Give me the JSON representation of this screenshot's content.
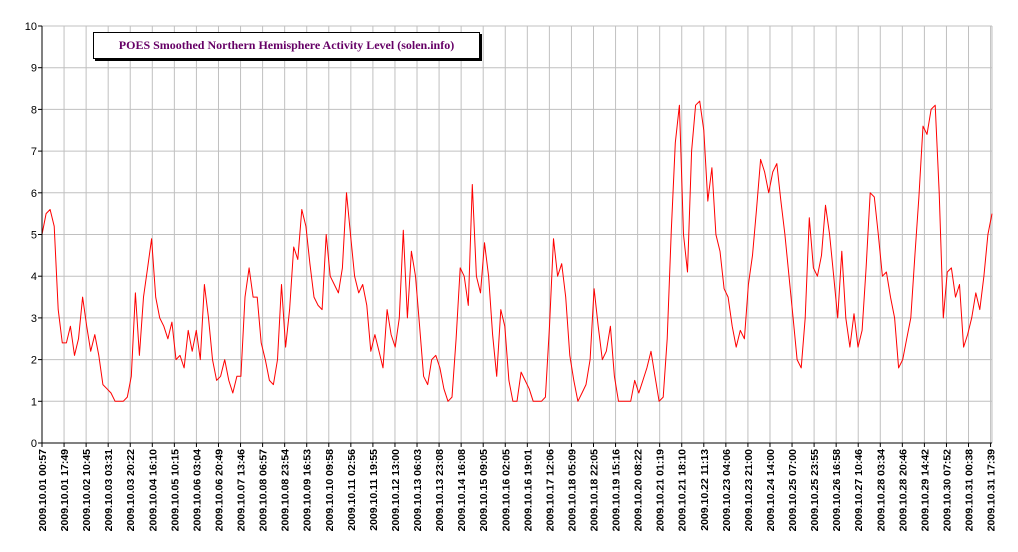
{
  "chart_data": {
    "type": "line",
    "title": "POES Smoothed Northern Hemisphere Activity Level  (solen.info)",
    "xlabel": "",
    "ylabel": "",
    "ylim": [
      0,
      10
    ],
    "y_ticks": [
      0,
      1,
      2,
      3,
      4,
      5,
      6,
      7,
      8,
      9,
      10
    ],
    "grid": true,
    "legend_position": "top-left",
    "colors": {
      "series": "#ff0000",
      "grid": "#c0c0c0",
      "title_text": "#660066",
      "axis": "#000000"
    },
    "x_tick_labels": [
      "2009.10.01 00:57",
      "2009.10.01 17:49",
      "2009.10.02 10:45",
      "2009.10.03 03:31",
      "2009.10.03 20:22",
      "2009.10.04 16:10",
      "2009.10.05 10:15",
      "2009.10.06 03:04",
      "2009.10.06 20:49",
      "2009.10.07 13:46",
      "2009.10.08 06:57",
      "2009.10.08 23:54",
      "2009.10.09 16:53",
      "2009.10.10 09:58",
      "2009.10.11 02:56",
      "2009.10.11 19:55",
      "2009.10.12 13:00",
      "2009.10.13 06:03",
      "2009.10.13 23:08",
      "2009.10.14 16:08",
      "2009.10.15 09:05",
      "2009.10.16 02:05",
      "2009.10.16 19:01",
      "2009.10.17 12:06",
      "2009.10.18 05:09",
      "2009.10.18 22:05",
      "2009.10.19 15:16",
      "2009.10.20 08:22",
      "2009.10.21 01:19",
      "2009.10.21 18:10",
      "2009.10.22 11:13",
      "2009.10.23 04:06",
      "2009.10.23 21:00",
      "2009.10.24 14:00",
      "2009.10.25 07:00",
      "2009.10.25 23:55",
      "2009.10.26 16:58",
      "2009.10.27 10:46",
      "2009.10.28 03:34",
      "2009.10.28 20:46",
      "2009.10.29 14:42",
      "2009.10.30 07:52",
      "2009.10.31 00:38",
      "2009.10.31 17:39"
    ],
    "series": [
      {
        "name": "",
        "x_start": "2009.10.01 00:57",
        "x_end": "2009.10.31 17:39",
        "values": [
          5.0,
          5.5,
          5.6,
          5.2,
          3.2,
          2.4,
          2.4,
          2.8,
          2.1,
          2.5,
          3.5,
          2.8,
          2.2,
          2.6,
          2.1,
          1.4,
          1.3,
          1.2,
          1.0,
          1.0,
          1.0,
          1.1,
          1.6,
          3.6,
          2.1,
          3.5,
          4.2,
          4.9,
          3.5,
          3.0,
          2.8,
          2.5,
          2.9,
          2.0,
          2.1,
          1.8,
          2.7,
          2.2,
          2.7,
          2.0,
          3.8,
          3.0,
          2.0,
          1.5,
          1.6,
          2.0,
          1.5,
          1.2,
          1.6,
          1.6,
          3.5,
          4.2,
          3.5,
          3.5,
          2.4,
          2.0,
          1.5,
          1.4,
          2.0,
          3.8,
          2.3,
          3.2,
          4.7,
          4.4,
          5.6,
          5.2,
          4.3,
          3.5,
          3.3,
          3.2,
          5.0,
          4.0,
          3.8,
          3.6,
          4.2,
          6.0,
          5.0,
          4.0,
          3.6,
          3.8,
          3.3,
          2.2,
          2.6,
          2.2,
          1.8,
          3.2,
          2.6,
          2.3,
          3.0,
          5.1,
          3.0,
          4.6,
          4.0,
          2.8,
          1.6,
          1.4,
          2.0,
          2.1,
          1.8,
          1.3,
          1.0,
          1.1,
          2.5,
          4.2,
          4.0,
          3.3,
          6.2,
          4.0,
          3.6,
          4.8,
          4.0,
          2.6,
          1.6,
          3.2,
          2.8,
          1.5,
          1.0,
          1.0,
          1.7,
          1.5,
          1.3,
          1.0,
          1.0,
          1.0,
          1.1,
          2.8,
          4.9,
          4.0,
          4.3,
          3.5,
          2.1,
          1.5,
          1.0,
          1.2,
          1.4,
          2.0,
          3.7,
          2.8,
          2.0,
          2.2,
          2.8,
          1.6,
          1.0,
          1.0,
          1.0,
          1.0,
          1.5,
          1.2,
          1.5,
          1.8,
          2.2,
          1.6,
          1.0,
          1.1,
          2.5,
          5.1,
          7.2,
          8.1,
          5.0,
          4.1,
          7.0,
          8.1,
          8.2,
          7.5,
          5.8,
          6.6,
          5.0,
          4.6,
          3.7,
          3.5,
          2.8,
          2.3,
          2.7,
          2.5,
          3.8,
          4.5,
          5.6,
          6.8,
          6.5,
          6.0,
          6.5,
          6.7,
          5.8,
          5.0,
          4.0,
          3.0,
          2.0,
          1.8,
          3.0,
          5.4,
          4.2,
          4.0,
          4.5,
          5.7,
          5.0,
          4.0,
          3.0,
          4.6,
          3.0,
          2.3,
          3.1,
          2.3,
          2.7,
          4.2,
          6.0,
          5.9,
          5.0,
          4.0,
          4.1,
          3.5,
          3.0,
          1.8,
          2.0,
          2.5,
          3.0,
          4.5,
          5.9,
          7.6,
          7.4,
          8.0,
          8.1,
          6.0,
          3.0,
          4.1,
          4.2,
          3.5,
          3.8,
          2.3,
          2.6,
          3.0,
          3.6,
          3.2,
          4.0,
          5.0,
          5.5
        ]
      }
    ]
  }
}
